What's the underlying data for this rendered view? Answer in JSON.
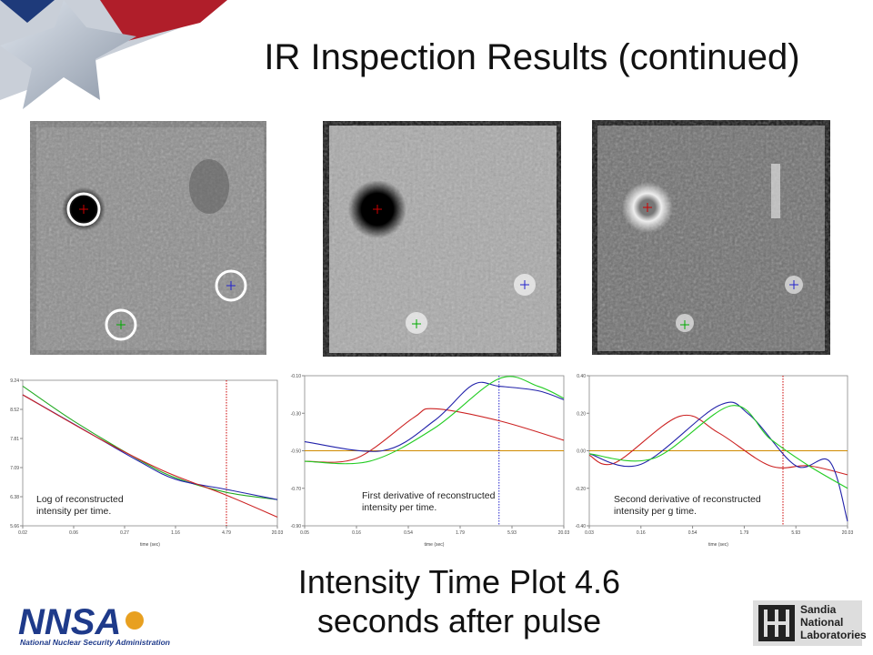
{
  "header": {
    "title": "IR Inspection Results  (continued)"
  },
  "plots": [
    {
      "caption": [
        "Log of  reconstructed",
        "intensity per time."
      ],
      "yticks": [
        "9.24",
        "8.52",
        "7.81",
        "7.09",
        "6.38",
        "5.66"
      ],
      "xticks": [
        "0.02",
        "0.06",
        "0.27",
        "1.16",
        "4.79",
        "20.03"
      ],
      "xlabel": "time (sec)"
    },
    {
      "caption": [
        "First derivative of  reconstructed",
        "intensity per  time."
      ],
      "yticks": [
        "-0.10",
        "-0.30",
        "-0.50",
        "-0.70",
        "-0.90"
      ],
      "xticks": [
        "0.05",
        "0.16",
        "0.54",
        "1.79",
        "5.93",
        "20.03"
      ],
      "xlabel": "time (sec)"
    },
    {
      "caption": [
        "Second derivative of reconstructed",
        "intensity per g time."
      ],
      "yticks": [
        "0.40",
        "0.20",
        "0.00",
        "-0.20",
        "-0.40"
      ],
      "xticks": [
        "0.03",
        "0.16",
        "0.54",
        "1.79",
        "5.93",
        "20.03"
      ],
      "xlabel": "time (sec)"
    }
  ],
  "footer": {
    "caption": [
      "Intensity Time Plot 4.6",
      "seconds after pulse"
    ],
    "nnsa": {
      "logo": "NNSA",
      "name": "National Nuclear Security Administration"
    },
    "sandia": [
      "Sandia",
      "National",
      "Laboratories"
    ]
  }
}
